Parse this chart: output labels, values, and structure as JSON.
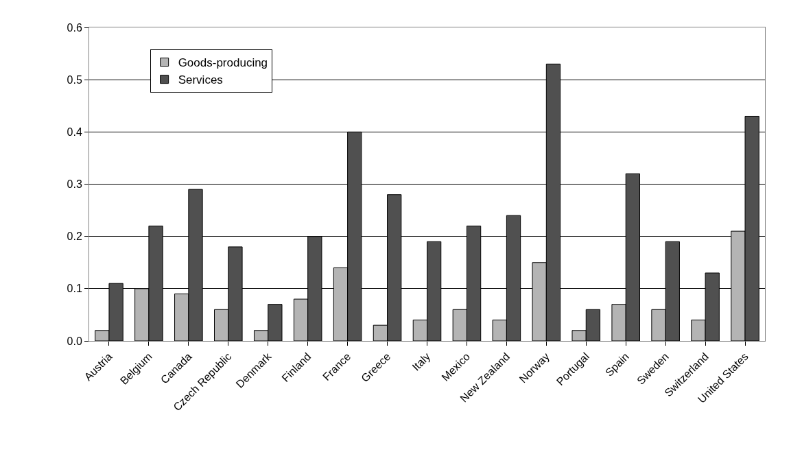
{
  "chart_data": {
    "type": "bar",
    "categories": [
      "Austria",
      "Belgium",
      "Canada",
      "Czech Republic",
      "Denmark",
      "Finland",
      "France",
      "Greece",
      "Italy",
      "Mexico",
      "New Zealand",
      "Norway",
      "Portugal",
      "Spain",
      "Sweden",
      "Switzerland",
      "United States"
    ],
    "series": [
      {
        "name": "Goods-producing",
        "color": "#b4b4b4",
        "values": [
          0.02,
          0.1,
          0.09,
          0.06,
          0.02,
          0.08,
          0.14,
          0.03,
          0.04,
          0.06,
          0.04,
          0.15,
          0.02,
          0.07,
          0.06,
          0.04,
          0.21
        ]
      },
      {
        "name": "Services",
        "color": "#505050",
        "values": [
          0.11,
          0.22,
          0.29,
          0.18,
          0.07,
          0.2,
          0.4,
          0.28,
          0.19,
          0.22,
          0.24,
          0.53,
          0.06,
          0.32,
          0.19,
          0.13,
          0.43
        ]
      }
    ],
    "ylim": [
      0,
      0.6
    ],
    "yticks": [
      {
        "value": 0,
        "label": "0.0"
      },
      0.1,
      0.2,
      0.3,
      0.4,
      0.5,
      0.6
    ],
    "grid": "y",
    "legend": "top left"
  }
}
